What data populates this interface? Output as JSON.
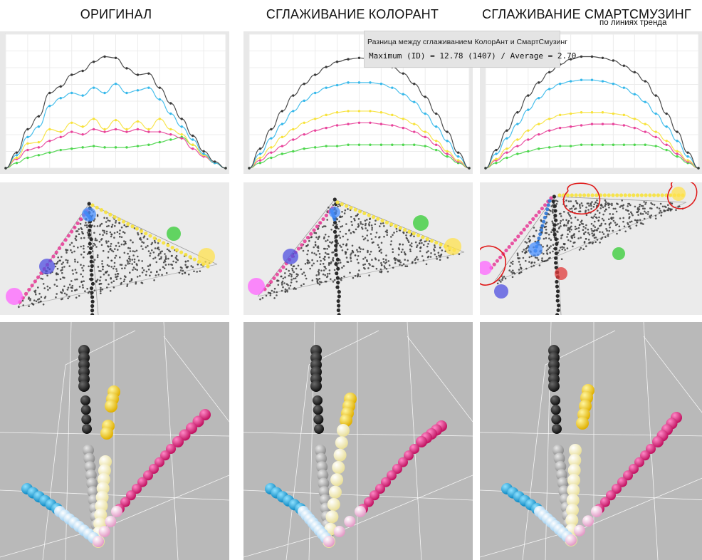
{
  "titles": {
    "original": "ОРИГИНАЛ",
    "colorant": "СГЛАЖИВАНИЕ КОЛОРАНТ",
    "smartsmoothing": "СГЛАЖИВАНИЕ СМАРТСМУЗИНГ",
    "smartsmoothing_sub": "по линиях тренда"
  },
  "tooltip": {
    "header": "Разница между сглаживанием КолорАнт и СмартСмузинг",
    "stats": "Maximum (ID) = 12.78 (1407) / Average = 2.70"
  },
  "colors": {
    "black": "#3a3a3a",
    "cyan": "#35b8ea",
    "yellow": "#f7e23a",
    "magenta": "#e8429a",
    "green": "#4cd64c",
    "annotation": "#e01919"
  },
  "chart_data": [
    {
      "type": "line",
      "panel": "original",
      "x": [
        0,
        5,
        10,
        15,
        20,
        25,
        30,
        35,
        40,
        45,
        50,
        55,
        60,
        65,
        70,
        75,
        80,
        85,
        90,
        95,
        100
      ],
      "xlim": [
        0,
        100
      ],
      "series": [
        {
          "color": "black",
          "values": [
            0,
            12,
            30,
            40,
            58,
            63,
            72,
            75,
            82,
            86,
            85,
            77,
            72,
            73,
            62,
            50,
            38,
            25,
            13,
            5,
            0
          ]
        },
        {
          "color": "cyan",
          "values": [
            0,
            10,
            24,
            32,
            48,
            54,
            58,
            56,
            62,
            58,
            65,
            58,
            60,
            62,
            53,
            42,
            32,
            22,
            11,
            4,
            0
          ]
        },
        {
          "color": "yellow",
          "values": [
            0,
            8,
            19,
            20,
            30,
            28,
            35,
            32,
            38,
            30,
            37,
            30,
            36,
            30,
            38,
            30,
            26,
            18,
            10,
            4,
            0
          ]
        },
        {
          "color": "magenta",
          "values": [
            0,
            7,
            14,
            16,
            21,
            24,
            28,
            26,
            30,
            28,
            30,
            28,
            30,
            28,
            28,
            26,
            23,
            15,
            9,
            4,
            0
          ]
        },
        {
          "color": "green",
          "values": [
            0,
            4,
            8,
            10,
            12,
            14,
            15,
            16,
            17,
            16,
            16,
            16,
            17,
            18,
            20,
            22,
            24,
            18,
            10,
            4,
            0
          ]
        }
      ]
    },
    {
      "type": "line",
      "panel": "colorant",
      "x": [
        0,
        5,
        10,
        15,
        20,
        25,
        30,
        35,
        40,
        45,
        50,
        55,
        60,
        65,
        70,
        75,
        80,
        85,
        90,
        95,
        100
      ],
      "xlim": [
        0,
        100
      ],
      "series": [
        {
          "color": "black",
          "values": [
            0,
            15,
            30,
            44,
            56,
            65,
            72,
            78,
            82,
            84,
            85,
            84,
            82,
            78,
            73,
            65,
            55,
            42,
            28,
            12,
            0
          ]
        },
        {
          "color": "cyan",
          "values": [
            0,
            11,
            23,
            34,
            44,
            52,
            58,
            62,
            64,
            66,
            66,
            66,
            65,
            62,
            57,
            51,
            42,
            32,
            21,
            9,
            0
          ]
        },
        {
          "color": "yellow",
          "values": [
            0,
            8,
            16,
            24,
            30,
            35,
            38,
            41,
            43,
            44,
            44,
            44,
            43,
            41,
            38,
            34,
            28,
            21,
            13,
            6,
            0
          ]
        },
        {
          "color": "magenta",
          "values": [
            0,
            6,
            12,
            17,
            22,
            26,
            29,
            31,
            33,
            34,
            35,
            35,
            34,
            33,
            31,
            28,
            24,
            18,
            11,
            5,
            0
          ]
        },
        {
          "color": "green",
          "values": [
            0,
            4,
            8,
            11,
            13,
            15,
            16,
            17,
            17,
            18,
            18,
            18,
            18,
            18,
            18,
            18,
            17,
            14,
            9,
            4,
            0
          ]
        }
      ]
    },
    {
      "type": "line",
      "panel": "smartsmoothing",
      "x": [
        0,
        5,
        10,
        15,
        20,
        25,
        30,
        35,
        40,
        45,
        50,
        55,
        60,
        65,
        70,
        75,
        80,
        85,
        90,
        95,
        100
      ],
      "xlim": [
        0,
        100
      ],
      "series": [
        {
          "color": "black",
          "values": [
            0,
            14,
            29,
            43,
            56,
            66,
            74,
            80,
            84,
            86,
            86,
            85,
            83,
            79,
            74,
            67,
            56,
            42,
            28,
            12,
            0
          ]
        },
        {
          "color": "cyan",
          "values": [
            0,
            11,
            23,
            34,
            45,
            54,
            61,
            65,
            67,
            68,
            68,
            67,
            65,
            62,
            57,
            51,
            42,
            32,
            21,
            9,
            0
          ]
        },
        {
          "color": "yellow",
          "values": [
            0,
            7,
            15,
            22,
            29,
            34,
            38,
            41,
            42,
            43,
            43,
            43,
            42,
            41,
            38,
            34,
            28,
            21,
            13,
            6,
            0
          ]
        },
        {
          "color": "magenta",
          "values": [
            0,
            6,
            12,
            17,
            22,
            26,
            29,
            31,
            32,
            33,
            34,
            34,
            34,
            33,
            31,
            28,
            24,
            18,
            11,
            5,
            0
          ]
        },
        {
          "color": "green",
          "values": [
            0,
            4,
            8,
            11,
            13,
            15,
            16,
            17,
            17,
            18,
            18,
            18,
            18,
            18,
            18,
            18,
            17,
            14,
            9,
            4,
            0
          ]
        }
      ]
    }
  ]
}
